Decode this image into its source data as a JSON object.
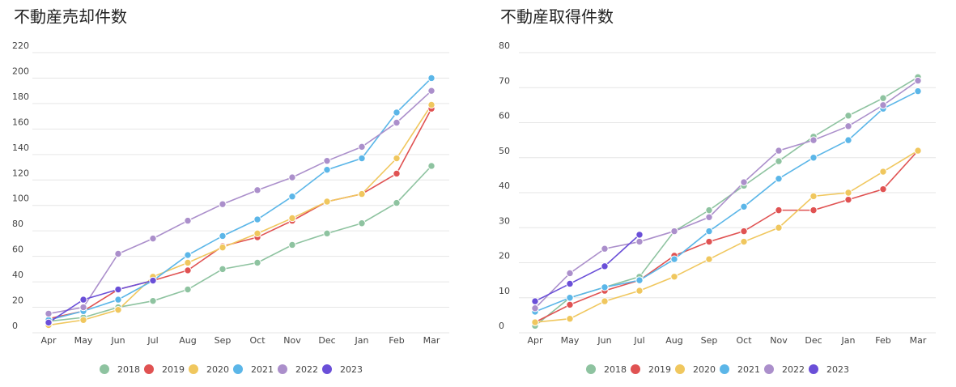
{
  "chart_data": [
    {
      "type": "line",
      "title": "不動産売却件数",
      "categories": [
        "Apr",
        "May",
        "Jun",
        "Jul",
        "Aug",
        "Sep",
        "Oct",
        "Nov",
        "Dec",
        "Jan",
        "Feb",
        "Mar"
      ],
      "ylim": [
        0,
        220
      ],
      "yticks": [
        0,
        20,
        40,
        60,
        80,
        100,
        120,
        140,
        160,
        180,
        200,
        220
      ],
      "grid": true,
      "legend": "bottom",
      "series": [
        {
          "name": "2018",
          "color": "#8ec3a0",
          "values": [
            9,
            12,
            20,
            25,
            34,
            50,
            55,
            69,
            78,
            86,
            102,
            131
          ]
        },
        {
          "name": "2019",
          "color": "#e05252",
          "values": [
            11,
            17,
            34,
            41,
            49,
            68,
            75,
            88,
            103,
            109,
            125,
            176
          ]
        },
        {
          "name": "2020",
          "color": "#f0c75e",
          "values": [
            6,
            10,
            18,
            44,
            55,
            67,
            78,
            90,
            103,
            109,
            137,
            179
          ]
        },
        {
          "name": "2021",
          "color": "#5bb6e8",
          "values": [
            10,
            17,
            26,
            41,
            61,
            76,
            89,
            107,
            128,
            137,
            173,
            200
          ]
        },
        {
          "name": "2022",
          "color": "#ab8fcb",
          "values": [
            15,
            20,
            62,
            74,
            88,
            101,
            112,
            122,
            135,
            146,
            165,
            190
          ]
        },
        {
          "name": "2023",
          "color": "#6a4fd8",
          "values": [
            8,
            26,
            34,
            41,
            null,
            null,
            null,
            null,
            null,
            null,
            null,
            null
          ]
        }
      ]
    },
    {
      "type": "line",
      "title": "不動産取得件数",
      "categories": [
        "Apr",
        "May",
        "Jun",
        "Jul",
        "Aug",
        "Sep",
        "Oct",
        "Nov",
        "Dec",
        "Jan",
        "Feb",
        "Mar"
      ],
      "ylim": [
        0,
        80
      ],
      "yticks": [
        0,
        10,
        20,
        30,
        40,
        50,
        60,
        70,
        80
      ],
      "grid": true,
      "legend": "bottom",
      "series": [
        {
          "name": "2018",
          "color": "#8ec3a0",
          "values": [
            2,
            10,
            13,
            16,
            29,
            35,
            42,
            49,
            56,
            62,
            67,
            73
          ]
        },
        {
          "name": "2019",
          "color": "#e05252",
          "values": [
            3,
            8,
            12,
            15,
            22,
            26,
            29,
            35,
            35,
            38,
            41,
            52
          ]
        },
        {
          "name": "2020",
          "color": "#f0c75e",
          "values": [
            3,
            4,
            9,
            12,
            16,
            21,
            26,
            30,
            39,
            40,
            46,
            52
          ]
        },
        {
          "name": "2021",
          "color": "#5bb6e8",
          "values": [
            6,
            10,
            13,
            15,
            21,
            29,
            36,
            44,
            50,
            55,
            64,
            69
          ]
        },
        {
          "name": "2022",
          "color": "#ab8fcb",
          "values": [
            7,
            17,
            24,
            26,
            29,
            33,
            43,
            52,
            55,
            59,
            65,
            72
          ]
        },
        {
          "name": "2023",
          "color": "#6a4fd8",
          "values": [
            9,
            14,
            19,
            28,
            null,
            null,
            null,
            null,
            null,
            null,
            null,
            null
          ]
        }
      ]
    }
  ]
}
